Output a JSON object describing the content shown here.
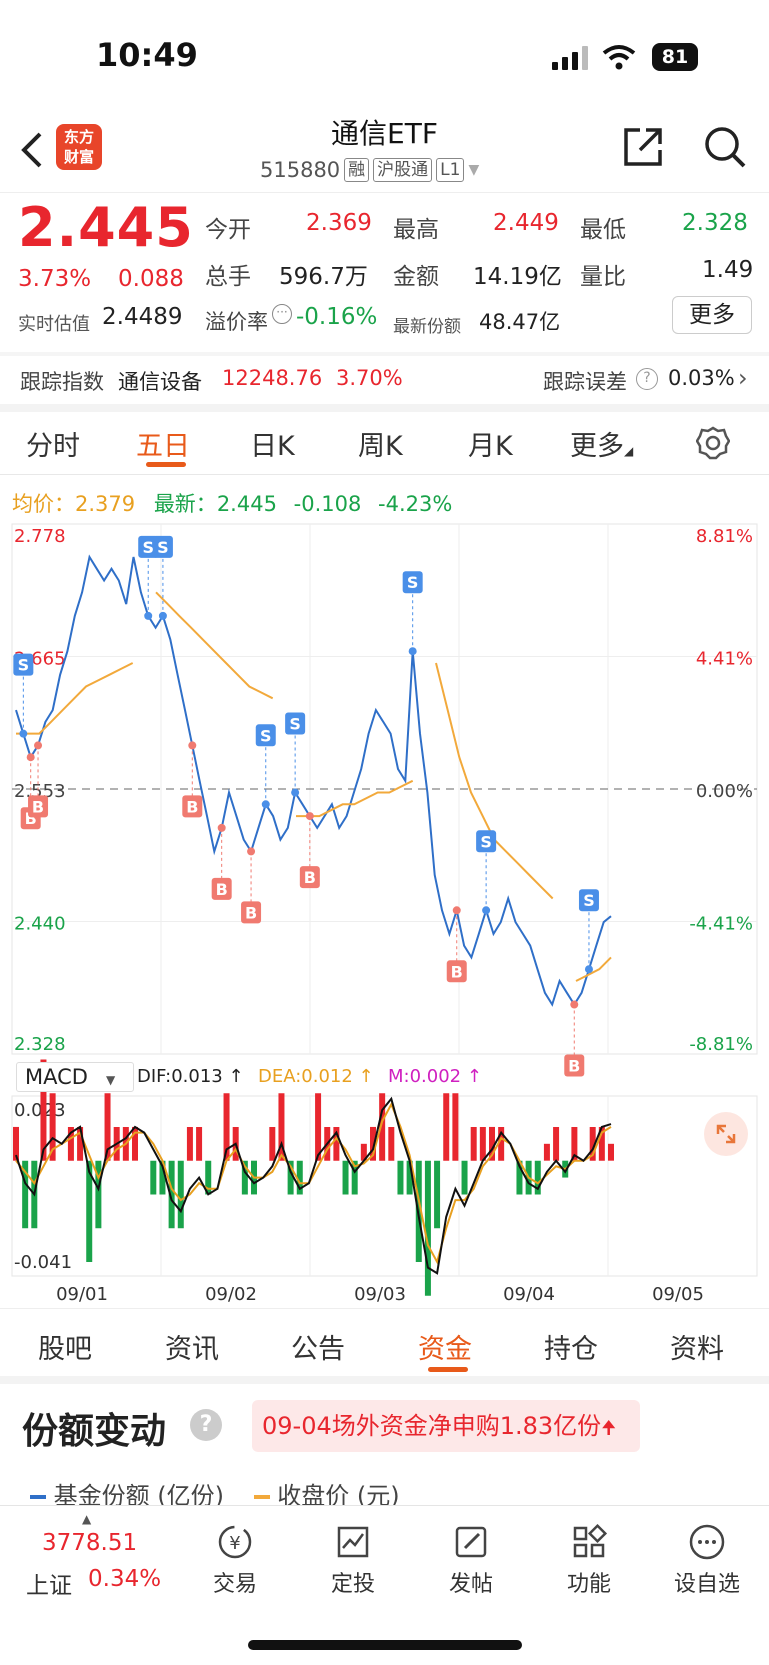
{
  "status": {
    "time": "10:49",
    "battery": "81"
  },
  "header": {
    "title": "通信ETF",
    "code": "515880",
    "tags": [
      "融",
      "沪股通",
      "L1"
    ],
    "logo_line1": "东方",
    "logo_line2": "财富"
  },
  "quote": {
    "price": "2.445",
    "change_pct": "3.73%",
    "change": "0.088",
    "open_label": "今开",
    "open": "2.369",
    "high_label": "最高",
    "high": "2.449",
    "low_label": "最低",
    "low": "2.328",
    "volume_label": "总手",
    "volume": "596.7万",
    "amount_label": "金额",
    "amount": "14.19亿",
    "ratio_label": "量比",
    "ratio": "1.49",
    "iopv_label": "实时估值",
    "iopv": "2.4489",
    "premium_label": "溢价率",
    "premium": "-0.16%",
    "shares_label": "最新份额",
    "shares": "48.47亿",
    "more": "更多"
  },
  "tracking": {
    "label": "跟踪指数",
    "index_name": "通信设备",
    "index_value": "12248.76",
    "index_pct": "3.70%",
    "error_label": "跟踪误差",
    "error_value": "0.03%"
  },
  "tabs": [
    "分时",
    "五日",
    "日K",
    "周K",
    "月K",
    "更多"
  ],
  "chart_header": {
    "avg_label": "均价：",
    "avg": "2.379",
    "latest_label": "最新：",
    "latest": "2.445",
    "chg": "-0.108",
    "chg_pct": "-4.23%"
  },
  "chart_data": {
    "type": "line",
    "y_left_ticks": [
      "2.778",
      "2.665",
      "2.553",
      "2.440",
      "2.328"
    ],
    "y_right_ticks": [
      "8.81%",
      "4.41%",
      "0.00%",
      "-4.41%",
      "-8.81%"
    ],
    "ylim": [
      2.328,
      2.778
    ],
    "x_labels": [
      "09/01",
      "09/02",
      "09/03",
      "09/04",
      "09/05"
    ],
    "price": [
      2.62,
      2.6,
      2.58,
      2.59,
      2.61,
      2.62,
      2.65,
      2.67,
      2.7,
      2.72,
      2.75,
      2.74,
      2.73,
      2.74,
      2.73,
      2.71,
      2.75,
      2.72,
      2.7,
      2.69,
      2.7,
      2.68,
      2.65,
      2.62,
      2.59,
      2.56,
      2.53,
      2.5,
      2.52,
      2.55,
      2.53,
      2.51,
      2.5,
      2.52,
      2.54,
      2.53,
      2.51,
      2.52,
      2.55,
      2.54,
      2.53,
      2.52,
      2.53,
      2.54,
      2.52,
      2.53,
      2.55,
      2.57,
      2.6,
      2.62,
      2.61,
      2.6,
      2.57,
      2.56,
      2.67,
      2.6,
      2.55,
      2.48,
      2.45,
      2.43,
      2.45,
      2.42,
      2.41,
      2.43,
      2.45,
      2.43,
      2.44,
      2.46,
      2.44,
      2.43,
      2.42,
      2.4,
      2.38,
      2.37,
      2.39,
      2.38,
      2.37,
      2.38,
      2.4,
      2.42,
      2.44,
      2.445
    ],
    "avg": [
      2.6,
      2.6,
      2.6,
      2.61,
      2.62,
      2.63,
      2.64,
      2.645,
      2.65,
      2.655,
      2.66,
      null,
      2.72,
      2.71,
      2.7,
      2.69,
      2.68,
      2.67,
      2.66,
      2.65,
      2.64,
      2.635,
      2.63,
      null,
      2.53,
      2.53,
      2.53,
      2.535,
      2.54,
      2.54,
      2.545,
      2.55,
      2.55,
      2.555,
      2.56,
      null,
      2.66,
      2.62,
      2.58,
      2.55,
      2.53,
      2.51,
      2.5,
      2.49,
      2.48,
      2.47,
      2.46,
      null,
      2.39,
      2.395,
      2.4,
      2.41
    ],
    "markers": [
      {
        "t": "S",
        "i": 1
      },
      {
        "t": "B",
        "i": 2
      },
      {
        "t": "B",
        "i": 3
      },
      {
        "t": "S",
        "i": 20
      },
      {
        "t": "S",
        "i": 18
      },
      {
        "t": "B",
        "i": 24
      },
      {
        "t": "B",
        "i": 28
      },
      {
        "t": "B",
        "i": 32
      },
      {
        "t": "S",
        "i": 34
      },
      {
        "t": "S",
        "i": 38
      },
      {
        "t": "B",
        "i": 40
      },
      {
        "t": "S",
        "i": 54
      },
      {
        "t": "B",
        "i": 60
      },
      {
        "t": "S",
        "i": 64
      },
      {
        "t": "B",
        "i": 76
      },
      {
        "t": "S",
        "i": 78
      }
    ]
  },
  "macd": {
    "label": "MACD",
    "dif_label": "DIF:0.013 ↑",
    "dea_label": "DEA:0.012 ↑",
    "m_label": "M:0.002 ↑",
    "top": "0.023",
    "bottom": "-0.041",
    "dif": [
      0.002,
      -0.008,
      -0.012,
      0.004,
      0.008,
      0.006,
      0.01,
      0.012,
      -0.004,
      -0.01,
      0.004,
      0.006,
      0.008,
      0.012,
      0.01,
      0.004,
      -0.002,
      -0.014,
      -0.018,
      -0.01,
      -0.006,
      -0.012,
      -0.01,
      0.004,
      0.006,
      -0.004,
      -0.008,
      -0.006,
      -0.002,
      0.006,
      -0.004,
      -0.01,
      -0.008,
      0.002,
      0.006,
      0.01,
      0.002,
      -0.004,
      0.0,
      0.004,
      0.018,
      0.022,
      0.01,
      0.0,
      -0.02,
      -0.038,
      -0.04,
      -0.02,
      -0.01,
      -0.016,
      -0.008,
      0.0,
      0.004,
      0.01,
      0.006,
      -0.002,
      -0.008,
      -0.01,
      -0.004,
      0.0,
      -0.004,
      0.002,
      0.0,
      0.004,
      0.012,
      0.013
    ],
    "dea": [
      0.0,
      -0.004,
      -0.008,
      -0.002,
      0.004,
      0.006,
      0.008,
      0.01,
      0.002,
      -0.006,
      0.0,
      0.004,
      0.006,
      0.01,
      0.01,
      0.006,
      0.0,
      -0.01,
      -0.014,
      -0.012,
      -0.008,
      -0.01,
      -0.01,
      0.0,
      0.004,
      -0.002,
      -0.006,
      -0.006,
      -0.004,
      0.002,
      -0.002,
      -0.008,
      -0.008,
      -0.002,
      0.004,
      0.008,
      0.004,
      -0.002,
      -0.001,
      0.002,
      0.014,
      0.02,
      0.012,
      0.002,
      -0.014,
      -0.03,
      -0.036,
      -0.024,
      -0.014,
      -0.014,
      -0.01,
      -0.002,
      0.002,
      0.008,
      0.006,
      0.0,
      -0.006,
      -0.008,
      -0.005,
      -0.002,
      -0.003,
      0.0,
      0.0,
      0.002,
      0.01,
      0.012
    ]
  },
  "fund_tabs": [
    "股吧",
    "资讯",
    "公告",
    "资金",
    "持仓",
    "资料"
  ],
  "section": {
    "title": "份额变动",
    "help": "?",
    "notice": "09-04场外资金净申购1.83亿份",
    "legend1": "基金份额 (亿份)",
    "legend2": "收盘价 (元)"
  },
  "bottom": {
    "index_value": "3778.51",
    "index_name": "上证",
    "index_pct": "0.34%",
    "items": [
      "交易",
      "定投",
      "发帖",
      "功能",
      "设自选"
    ]
  },
  "colors": {
    "red": "#e8262e",
    "green": "#1aa34a",
    "orange": "#e85a1a",
    "blue": "#2f6fc8",
    "avg": "#f2a93b",
    "marker_blue": "#4a8fe8",
    "marker_red": "#f07a70"
  }
}
